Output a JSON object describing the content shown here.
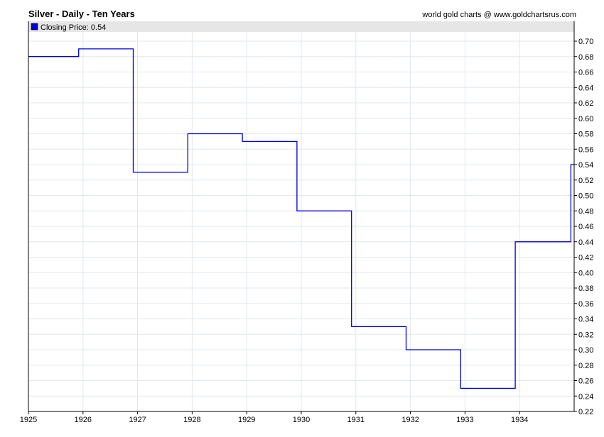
{
  "header": {
    "title": "Silver - Daily - Ten Years",
    "credit": "world gold charts @ www.goldchartsrus.com"
  },
  "legend": {
    "label": "Closing Price: 0.54"
  },
  "colors": {
    "series": "#0000dd",
    "grid": "#e2e8ee",
    "legend_bg": "#e6e6e6",
    "legend_swatch": "#0000cc"
  },
  "chart_data": {
    "type": "line",
    "title": "Silver - Daily - Ten Years",
    "xlabel": "",
    "ylabel": "",
    "xlim": [
      1925,
      1935
    ],
    "ylim": [
      0.22,
      0.71
    ],
    "grid": true,
    "legend_position": "top-left",
    "x_ticks": [
      "1925",
      "1926",
      "1927",
      "1928",
      "1929",
      "1930",
      "1931",
      "1932",
      "1933",
      "1934"
    ],
    "y_ticks": [
      "0.22",
      "0.24",
      "0.26",
      "0.28",
      "0.30",
      "0.32",
      "0.34",
      "0.36",
      "0.38",
      "0.40",
      "0.42",
      "0.44",
      "0.46",
      "0.48",
      "0.50",
      "0.52",
      "0.54",
      "0.56",
      "0.58",
      "0.60",
      "0.62",
      "0.64",
      "0.66",
      "0.68",
      "0.70"
    ],
    "series": [
      {
        "name": "Closing Price",
        "step": true,
        "points": [
          [
            1925.0,
            0.68
          ],
          [
            1925.92,
            0.68
          ],
          [
            1925.92,
            0.69
          ],
          [
            1926.92,
            0.69
          ],
          [
            1926.92,
            0.53
          ],
          [
            1927.92,
            0.53
          ],
          [
            1927.92,
            0.58
          ],
          [
            1928.92,
            0.58
          ],
          [
            1928.92,
            0.57
          ],
          [
            1929.92,
            0.57
          ],
          [
            1929.92,
            0.48
          ],
          [
            1930.92,
            0.48
          ],
          [
            1930.92,
            0.33
          ],
          [
            1931.92,
            0.33
          ],
          [
            1931.92,
            0.3
          ],
          [
            1932.92,
            0.3
          ],
          [
            1932.92,
            0.25
          ],
          [
            1933.92,
            0.25
          ],
          [
            1933.92,
            0.44
          ],
          [
            1934.94,
            0.44
          ],
          [
            1934.94,
            0.54
          ],
          [
            1935.0,
            0.54
          ]
        ]
      }
    ]
  }
}
